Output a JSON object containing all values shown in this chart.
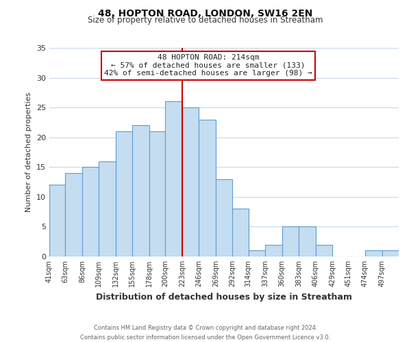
{
  "title": "48, HOPTON ROAD, LONDON, SW16 2EN",
  "subtitle": "Size of property relative to detached houses in Streatham",
  "xlabel": "Distribution of detached houses by size in Streatham",
  "ylabel": "Number of detached properties",
  "footer_line1": "Contains HM Land Registry data © Crown copyright and database right 2024.",
  "footer_line2": "Contains public sector information licensed under the Open Government Licence v3.0.",
  "bar_labels": [
    "41sqm",
    "63sqm",
    "86sqm",
    "109sqm",
    "132sqm",
    "155sqm",
    "178sqm",
    "200sqm",
    "223sqm",
    "246sqm",
    "269sqm",
    "292sqm",
    "314sqm",
    "337sqm",
    "360sqm",
    "383sqm",
    "406sqm",
    "429sqm",
    "451sqm",
    "474sqm",
    "497sqm"
  ],
  "bar_values": [
    12,
    14,
    15,
    16,
    21,
    22,
    21,
    26,
    25,
    23,
    13,
    8,
    1,
    2,
    5,
    5,
    2,
    0,
    0,
    1,
    1
  ],
  "bar_color": "#c5ddf0",
  "bar_edge_color": "#5b9bd5",
  "ylim": [
    0,
    35
  ],
  "yticks": [
    0,
    5,
    10,
    15,
    20,
    25,
    30,
    35
  ],
  "property_line_x": 223,
  "property_line_label": "48 HOPTON ROAD: 214sqm",
  "annotation_line2": "← 57% of detached houses are smaller (133)",
  "annotation_line3": "42% of semi-detached houses are larger (98) →",
  "annotation_box_color": "#ffffff",
  "annotation_box_edge_color": "#cc0000",
  "vline_color": "#cc0000",
  "bin_edges": [
    41,
    63,
    86,
    109,
    132,
    155,
    178,
    200,
    223,
    246,
    269,
    292,
    314,
    337,
    360,
    383,
    406,
    429,
    451,
    474,
    497,
    520
  ],
  "background_color": "#ffffff",
  "grid_color": "#c8d8e8"
}
